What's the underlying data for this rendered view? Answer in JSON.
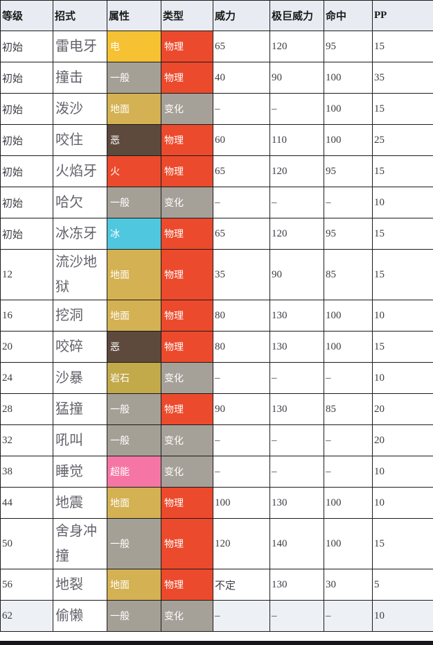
{
  "table": {
    "columns": [
      "等级",
      "招式",
      "属性",
      "类型",
      "威力",
      "极巨威力",
      "命中",
      "PP"
    ],
    "rows": [
      {
        "level": "初始",
        "move": "雷电牙",
        "type": "电",
        "category": "物理",
        "power": "65",
        "max_power": "120",
        "accuracy": "95",
        "pp": "15"
      },
      {
        "level": "初始",
        "move": "撞击",
        "type": "一般",
        "category": "物理",
        "power": "40",
        "max_power": "90",
        "accuracy": "100",
        "pp": "35"
      },
      {
        "level": "初始",
        "move": "泼沙",
        "type": "地面",
        "category": "变化",
        "power": "–",
        "max_power": "–",
        "accuracy": "100",
        "pp": "15"
      },
      {
        "level": "初始",
        "move": "咬住",
        "type": "恶",
        "category": "物理",
        "power": "60",
        "max_power": "110",
        "accuracy": "100",
        "pp": "25"
      },
      {
        "level": "初始",
        "move": "火焰牙",
        "type": "火",
        "category": "物理",
        "power": "65",
        "max_power": "120",
        "accuracy": "95",
        "pp": "15"
      },
      {
        "level": "初始",
        "move": "哈欠",
        "type": "一般",
        "category": "变化",
        "power": "–",
        "max_power": "–",
        "accuracy": "–",
        "pp": "10"
      },
      {
        "level": "初始",
        "move": "冰冻牙",
        "type": "冰",
        "category": "物理",
        "power": "65",
        "max_power": "120",
        "accuracy": "95",
        "pp": "15"
      },
      {
        "level": "12",
        "move": "流沙地狱",
        "type": "地面",
        "category": "物理",
        "power": "35",
        "max_power": "90",
        "accuracy": "85",
        "pp": "15"
      },
      {
        "level": "16",
        "move": "挖洞",
        "type": "地面",
        "category": "物理",
        "power": "80",
        "max_power": "130",
        "accuracy": "100",
        "pp": "10"
      },
      {
        "level": "20",
        "move": "咬碎",
        "type": "恶",
        "category": "物理",
        "power": "80",
        "max_power": "130",
        "accuracy": "100",
        "pp": "15"
      },
      {
        "level": "24",
        "move": "沙暴",
        "type": "岩石",
        "category": "变化",
        "power": "–",
        "max_power": "–",
        "accuracy": "–",
        "pp": "10"
      },
      {
        "level": "28",
        "move": "猛撞",
        "type": "一般",
        "category": "物理",
        "power": "90",
        "max_power": "130",
        "accuracy": "85",
        "pp": "20"
      },
      {
        "level": "32",
        "move": "吼叫",
        "type": "一般",
        "category": "变化",
        "power": "–",
        "max_power": "–",
        "accuracy": "–",
        "pp": "20"
      },
      {
        "level": "38",
        "move": "睡觉",
        "type": "超能",
        "category": "变化",
        "power": "–",
        "max_power": "–",
        "accuracy": "–",
        "pp": "10"
      },
      {
        "level": "44",
        "move": "地震",
        "type": "地面",
        "category": "物理",
        "power": "100",
        "max_power": "130",
        "accuracy": "100",
        "pp": "10"
      },
      {
        "level": "50",
        "move": "舍身冲撞",
        "type": "一般",
        "category": "物理",
        "power": "120",
        "max_power": "140",
        "accuracy": "100",
        "pp": "15"
      },
      {
        "level": "56",
        "move": "地裂",
        "type": "地面",
        "category": "物理",
        "power": "不定",
        "max_power": "130",
        "accuracy": "30",
        "pp": "5"
      },
      {
        "level": "62",
        "move": "偷懒",
        "type": "一般",
        "category": "变化",
        "power": "–",
        "max_power": "–",
        "accuracy": "–",
        "pp": "10"
      }
    ],
    "type_colors": {
      "电": "#F6C132",
      "一般": "#A5A096",
      "地面": "#D4B152",
      "恶": "#5D4A3D",
      "火": "#EC4A2C",
      "冰": "#4FC7DF",
      "岩石": "#C2A94A",
      "超能": "#F576A4"
    },
    "category_colors": {
      "物理": "#EC4A2C",
      "变化": "#A6A198"
    }
  },
  "colors": {
    "header_bg": "#e8ecf2",
    "grid_border": "#1a1a1a",
    "last_row_bg": "#edf0f5",
    "bottom_bar": "#16161d"
  }
}
